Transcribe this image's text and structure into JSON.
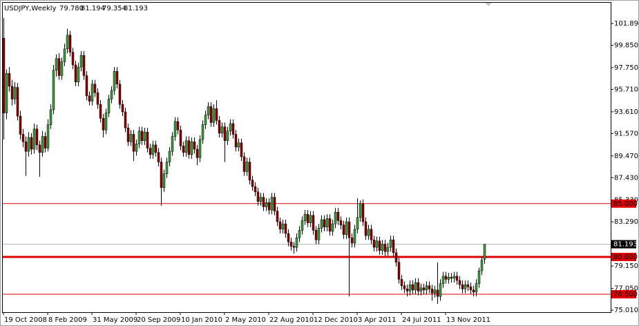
{
  "chart_data": {
    "type": "candlestick",
    "header": {
      "symbol": "USDJPY,Weekly",
      "ohlc_labels": [
        "79.780",
        "81.194",
        "79.354",
        "81.193"
      ]
    },
    "up_color": "#3c9c3c",
    "down_color": "#8b0000",
    "wick_color": "#000000",
    "ylim": [
      74.82,
      103.83
    ],
    "yticks": [
      {
        "value": 101.89,
        "label": "101.890"
      },
      {
        "value": 99.85,
        "label": "99.850"
      },
      {
        "value": 97.75,
        "label": "97.750"
      },
      {
        "value": 95.71,
        "label": "95.710"
      },
      {
        "value": 93.61,
        "label": "93.610"
      },
      {
        "value": 91.57,
        "label": "91.570"
      },
      {
        "value": 89.47,
        "label": "89.470"
      },
      {
        "value": 87.43,
        "label": "87.430"
      },
      {
        "value": 85.33,
        "label": "85.330"
      },
      {
        "value": 83.29,
        "label": "83.290"
      },
      {
        "value": 79.15,
        "label": "79.150"
      },
      {
        "value": 77.05,
        "label": "77.050"
      },
      {
        "value": 75.01,
        "label": "75.010"
      }
    ],
    "levels": [
      {
        "value": 85,
        "label": "85.000",
        "width": 1
      },
      {
        "value": 80,
        "label": "80.000",
        "width": 3
      },
      {
        "value": 76.5,
        "label": "76.500",
        "width": 1
      }
    ],
    "level_color": "#e00000",
    "price_line": {
      "value": 81.193,
      "label": "81.193",
      "color": "#b0b0b0"
    },
    "categories": [
      "19 Oct 2008",
      null,
      null,
      null,
      null,
      null,
      null,
      null,
      null,
      null,
      null,
      null,
      null,
      null,
      null,
      null,
      "8 Feb 2009",
      null,
      null,
      null,
      null,
      null,
      null,
      null,
      null,
      null,
      null,
      null,
      null,
      null,
      null,
      null,
      "31 May 2009",
      null,
      null,
      null,
      null,
      null,
      null,
      null,
      null,
      null,
      null,
      null,
      null,
      null,
      null,
      null,
      "20 Sep 2009",
      null,
      null,
      null,
      null,
      null,
      null,
      null,
      null,
      null,
      null,
      null,
      null,
      null,
      null,
      null,
      "10 Jan 2010",
      null,
      null,
      null,
      null,
      null,
      null,
      null,
      null,
      null,
      null,
      null,
      null,
      null,
      null,
      null,
      "2 May 2010",
      null,
      null,
      null,
      null,
      null,
      null,
      null,
      null,
      null,
      null,
      null,
      null,
      null,
      null,
      null,
      "22 Aug 2010",
      null,
      null,
      null,
      null,
      null,
      null,
      null,
      null,
      null,
      null,
      null,
      null,
      null,
      null,
      null,
      "12 Dec 2010",
      null,
      null,
      null,
      null,
      null,
      null,
      null,
      null,
      null,
      null,
      null,
      null,
      null,
      null,
      null,
      "3 Apr 2011",
      null,
      null,
      null,
      null,
      null,
      null,
      null,
      null,
      null,
      null,
      null,
      null,
      null,
      null,
      null,
      "24 Jul 2011",
      null,
      null,
      null,
      null,
      null,
      null,
      null,
      null,
      null,
      null,
      null,
      null,
      null,
      null,
      null,
      "13 Nov 2011",
      null,
      null,
      null,
      null,
      null,
      null,
      null,
      null,
      null,
      null,
      null,
      null,
      null,
      null
    ],
    "candles": [
      [
        100.5,
        102.4,
        91.0,
        93.5
      ],
      [
        93.5,
        97.6,
        92.9,
        97.2
      ],
      [
        97.2,
        97.8,
        95.5,
        96.0
      ],
      [
        96.0,
        96.6,
        94.2,
        94.8
      ],
      [
        94.8,
        96.4,
        94.3,
        95.9
      ],
      [
        95.9,
        96.3,
        92.8,
        93.2
      ],
      [
        93.2,
        93.7,
        91.0,
        91.5
      ],
      [
        91.5,
        92.0,
        90.3,
        90.8
      ],
      [
        90.8,
        91.3,
        87.6,
        89.9
      ],
      [
        89.9,
        91.7,
        89.4,
        91.2
      ],
      [
        91.2,
        91.6,
        89.6,
        90.1
      ],
      [
        90.1,
        92.5,
        89.7,
        92.0
      ],
      [
        92.0,
        92.4,
        90.0,
        90.5
      ],
      [
        90.5,
        90.9,
        87.5,
        89.8
      ],
      [
        89.8,
        91.8,
        89.4,
        91.3
      ],
      [
        91.3,
        91.7,
        89.8,
        90.2
      ],
      [
        90.2,
        92.9,
        89.9,
        92.4
      ],
      [
        92.4,
        94.3,
        92.0,
        93.8
      ],
      [
        93.8,
        98.0,
        93.4,
        97.5
      ],
      [
        97.5,
        99.0,
        96.9,
        98.6
      ],
      [
        98.6,
        99.1,
        96.6,
        97.0
      ],
      [
        97.0,
        98.7,
        96.6,
        98.3
      ],
      [
        98.3,
        100.0,
        97.9,
        99.5
      ],
      [
        99.5,
        101.4,
        99.1,
        100.8
      ],
      [
        100.8,
        101.2,
        98.8,
        99.2
      ],
      [
        99.2,
        99.6,
        97.6,
        98.0
      ],
      [
        98.0,
        98.4,
        96.0,
        96.4
      ],
      [
        96.4,
        98.2,
        96.0,
        97.8
      ],
      [
        97.8,
        99.3,
        97.4,
        98.9
      ],
      [
        98.9,
        99.3,
        96.6,
        97.0
      ],
      [
        97.0,
        97.4,
        94.7,
        95.1
      ],
      [
        95.1,
        95.5,
        94.2,
        94.6
      ],
      [
        94.6,
        96.6,
        94.2,
        96.2
      ],
      [
        96.2,
        96.6,
        95.0,
        95.4
      ],
      [
        95.4,
        95.8,
        93.9,
        94.3
      ],
      [
        94.3,
        94.7,
        92.6,
        93.0
      ],
      [
        93.0,
        93.4,
        91.2,
        91.9
      ],
      [
        91.9,
        93.9,
        91.5,
        93.5
      ],
      [
        93.5,
        95.2,
        93.1,
        94.8
      ],
      [
        94.8,
        96.0,
        94.4,
        95.6
      ],
      [
        95.6,
        97.8,
        95.2,
        97.4
      ],
      [
        97.4,
        97.8,
        95.8,
        96.2
      ],
      [
        96.2,
        96.6,
        93.9,
        94.3
      ],
      [
        94.3,
        94.7,
        93.2,
        93.6
      ],
      [
        93.6,
        94.0,
        91.7,
        92.1
      ],
      [
        92.1,
        92.5,
        90.4,
        90.8
      ],
      [
        90.8,
        91.9,
        90.4,
        91.5
      ],
      [
        91.5,
        91.9,
        89.0,
        89.9
      ],
      [
        89.9,
        91.0,
        89.5,
        90.6
      ],
      [
        90.6,
        92.2,
        90.2,
        91.8
      ],
      [
        91.8,
        92.2,
        90.5,
        90.9
      ],
      [
        90.9,
        92.1,
        90.5,
        91.7
      ],
      [
        91.7,
        92.1,
        89.8,
        90.2
      ],
      [
        90.2,
        90.6,
        89.2,
        89.6
      ],
      [
        89.6,
        90.9,
        89.2,
        90.5
      ],
      [
        90.5,
        90.9,
        89.4,
        89.8
      ],
      [
        89.8,
        90.2,
        88.5,
        88.9
      ],
      [
        88.9,
        89.3,
        84.8,
        86.5
      ],
      [
        86.5,
        88.2,
        86.1,
        87.8
      ],
      [
        87.8,
        89.3,
        87.4,
        88.9
      ],
      [
        88.9,
        90.3,
        88.5,
        89.9
      ],
      [
        89.9,
        91.7,
        89.5,
        91.3
      ],
      [
        91.3,
        93.1,
        90.9,
        92.7
      ],
      [
        92.7,
        93.1,
        91.5,
        91.9
      ],
      [
        91.9,
        92.3,
        90.0,
        90.4
      ],
      [
        90.4,
        90.8,
        89.4,
        89.8
      ],
      [
        89.8,
        91.3,
        89.4,
        90.9
      ],
      [
        90.9,
        91.3,
        89.2,
        89.6
      ],
      [
        89.6,
        91.2,
        89.2,
        90.8
      ],
      [
        90.8,
        91.2,
        89.7,
        90.1
      ],
      [
        90.1,
        90.5,
        88.6,
        89.3
      ],
      [
        89.3,
        91.4,
        88.9,
        91.0
      ],
      [
        91.0,
        92.8,
        90.6,
        92.4
      ],
      [
        92.4,
        93.7,
        92.0,
        93.3
      ],
      [
        93.3,
        94.5,
        92.9,
        94.1
      ],
      [
        94.1,
        94.5,
        92.2,
        92.6
      ],
      [
        92.6,
        94.3,
        92.2,
        93.9
      ],
      [
        93.9,
        94.7,
        92.4,
        92.8
      ],
      [
        92.8,
        93.2,
        91.2,
        91.6
      ],
      [
        91.6,
        92.6,
        91.2,
        92.2
      ],
      [
        92.2,
        92.6,
        88.9,
        90.9
      ],
      [
        90.9,
        92.2,
        90.5,
        91.8
      ],
      [
        91.8,
        92.9,
        91.4,
        92.5
      ],
      [
        92.5,
        92.9,
        91.1,
        91.5
      ],
      [
        91.5,
        91.9,
        89.9,
        90.3
      ],
      [
        90.3,
        91.1,
        89.9,
        90.7
      ],
      [
        90.7,
        91.1,
        89.0,
        89.4
      ],
      [
        89.4,
        89.8,
        87.6,
        88.0
      ],
      [
        88.0,
        89.3,
        87.6,
        88.9
      ],
      [
        88.9,
        89.3,
        86.8,
        87.2
      ],
      [
        87.2,
        87.6,
        86.2,
        86.6
      ],
      [
        86.6,
        87.0,
        85.7,
        86.1
      ],
      [
        86.1,
        86.5,
        84.8,
        85.2
      ],
      [
        85.2,
        86.0,
        84.8,
        85.6
      ],
      [
        85.6,
        86.0,
        84.3,
        84.7
      ],
      [
        84.7,
        85.5,
        84.3,
        85.1
      ],
      [
        85.1,
        85.5,
        84.0,
        84.4
      ],
      [
        84.4,
        86.0,
        84.0,
        85.6
      ],
      [
        85.6,
        86.0,
        83.9,
        84.3
      ],
      [
        84.3,
        84.7,
        82.9,
        83.3
      ],
      [
        83.3,
        83.7,
        82.2,
        82.6
      ],
      [
        82.6,
        83.5,
        82.2,
        83.1
      ],
      [
        83.1,
        83.5,
        81.8,
        82.2
      ],
      [
        82.2,
        82.6,
        81.0,
        81.4
      ],
      [
        81.4,
        81.8,
        80.6,
        81.0
      ],
      [
        81.0,
        81.4,
        80.3,
        80.9
      ],
      [
        80.9,
        82.2,
        80.5,
        81.8
      ],
      [
        81.8,
        82.9,
        81.4,
        82.5
      ],
      [
        82.5,
        83.8,
        82.1,
        83.4
      ],
      [
        83.4,
        84.4,
        83.0,
        84.0
      ],
      [
        84.0,
        84.4,
        82.8,
        83.2
      ],
      [
        83.2,
        84.3,
        82.8,
        83.9
      ],
      [
        83.9,
        84.3,
        82.1,
        82.5
      ],
      [
        82.5,
        82.9,
        81.2,
        81.6
      ],
      [
        81.6,
        83.1,
        81.2,
        82.7
      ],
      [
        82.7,
        83.9,
        82.3,
        83.5
      ],
      [
        83.5,
        83.9,
        82.4,
        82.8
      ],
      [
        82.8,
        84.0,
        82.4,
        83.6
      ],
      [
        83.6,
        84.0,
        82.0,
        82.4
      ],
      [
        82.4,
        83.5,
        82.0,
        83.1
      ],
      [
        83.1,
        84.6,
        82.7,
        84.2
      ],
      [
        84.2,
        84.6,
        83.0,
        83.4
      ],
      [
        83.4,
        83.8,
        82.6,
        83.0
      ],
      [
        83.0,
        83.4,
        81.7,
        82.1
      ],
      [
        82.1,
        83.7,
        81.7,
        83.3
      ],
      [
        83.3,
        83.7,
        76.3,
        81.8
      ],
      [
        81.8,
        82.2,
        80.9,
        81.3
      ],
      [
        81.3,
        83.0,
        80.9,
        82.6
      ],
      [
        82.6,
        85.5,
        82.2,
        83.7
      ],
      [
        83.7,
        85.3,
        83.3,
        85.0
      ],
      [
        85.0,
        85.4,
        82.9,
        83.3
      ],
      [
        83.3,
        83.7,
        81.6,
        82.0
      ],
      [
        82.0,
        83.0,
        81.6,
        82.6
      ],
      [
        82.6,
        83.0,
        81.2,
        81.6
      ],
      [
        81.6,
        82.0,
        80.5,
        80.9
      ],
      [
        80.9,
        81.9,
        80.5,
        81.5
      ],
      [
        81.5,
        81.9,
        80.2,
        80.6
      ],
      [
        80.6,
        81.6,
        80.2,
        81.2
      ],
      [
        81.2,
        81.6,
        80.1,
        80.5
      ],
      [
        80.5,
        81.3,
        80.1,
        80.9
      ],
      [
        80.9,
        82.0,
        80.5,
        81.6
      ],
      [
        81.6,
        82.0,
        80.0,
        80.4
      ],
      [
        80.4,
        80.8,
        79.1,
        79.5
      ],
      [
        79.5,
        79.9,
        77.5,
        77.9
      ],
      [
        77.9,
        78.3,
        76.9,
        77.3
      ],
      [
        77.3,
        77.7,
        76.6,
        77.0
      ],
      [
        77.0,
        77.4,
        76.3,
        76.8
      ],
      [
        76.8,
        77.8,
        76.4,
        77.4
      ],
      [
        77.4,
        77.8,
        76.5,
        76.9
      ],
      [
        76.9,
        78.0,
        76.5,
        77.6
      ],
      [
        77.6,
        78.0,
        76.4,
        76.8
      ],
      [
        76.8,
        77.5,
        76.4,
        77.1
      ],
      [
        77.1,
        77.5,
        76.5,
        76.9
      ],
      [
        76.9,
        77.7,
        76.5,
        77.3
      ],
      [
        77.3,
        77.7,
        76.6,
        77.0
      ],
      [
        77.0,
        77.4,
        75.9,
        76.6
      ],
      [
        76.6,
        77.3,
        76.2,
        76.9
      ],
      [
        76.9,
        79.5,
        75.6,
        76.3
      ],
      [
        76.3,
        77.9,
        75.9,
        77.5
      ],
      [
        77.5,
        78.6,
        77.1,
        78.2
      ],
      [
        78.2,
        78.6,
        77.5,
        77.9
      ],
      [
        77.9,
        78.5,
        77.5,
        78.1
      ],
      [
        78.1,
        78.5,
        77.6,
        78.0
      ],
      [
        78.0,
        78.6,
        77.6,
        78.2
      ],
      [
        78.2,
        78.6,
        77.4,
        77.8
      ],
      [
        77.8,
        78.2,
        77.0,
        77.4
      ],
      [
        77.4,
        77.8,
        76.6,
        77.0
      ],
      [
        77.0,
        77.8,
        76.6,
        77.4
      ],
      [
        77.4,
        77.8,
        76.8,
        77.2
      ],
      [
        77.2,
        77.6,
        76.5,
        76.9
      ],
      [
        76.9,
        77.3,
        76.3,
        76.7
      ],
      [
        76.7,
        77.9,
        76.3,
        77.5
      ],
      [
        77.5,
        79.0,
        77.1,
        78.7
      ],
      [
        78.7,
        80.0,
        78.3,
        79.7
      ],
      [
        79.78,
        81.194,
        79.354,
        81.193
      ]
    ]
  }
}
